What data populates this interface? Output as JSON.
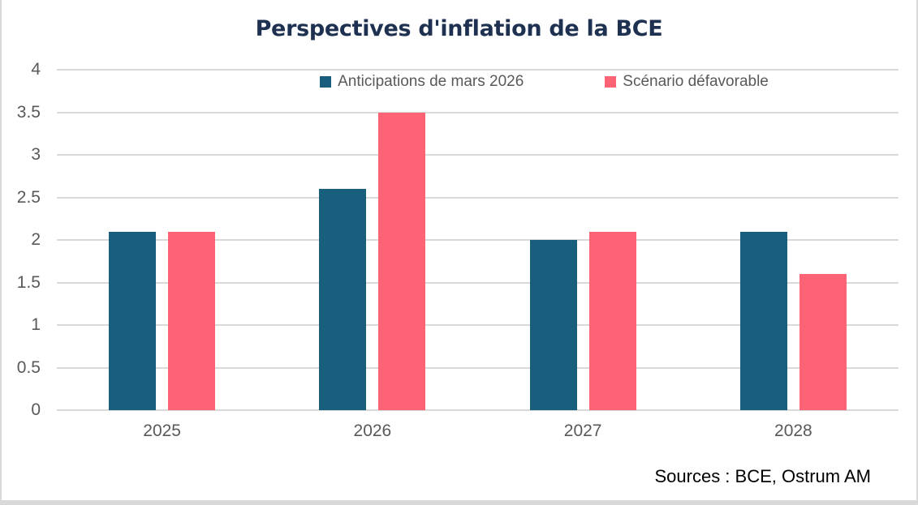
{
  "window": {
    "source_note": "Sources : BCE, Ostrum AM"
  },
  "chart_data": {
    "type": "bar",
    "title": "Perspectives d'inflation de la BCE",
    "categories": [
      "2025",
      "2026",
      "2027",
      "2028"
    ],
    "series": [
      {
        "name": "Anticipations de mars 2026",
        "color": "#195E7D",
        "values": [
          2.1,
          2.6,
          2.0,
          2.1
        ]
      },
      {
        "name": "Scénario défavorable",
        "color": "#FC6476",
        "values": [
          2.1,
          3.5,
          2.1,
          1.6
        ]
      }
    ],
    "xlabel": "",
    "ylabel": "",
    "ylim": [
      0,
      4
    ],
    "ytick_step": 0.5,
    "yticks": [
      "0",
      "0.5",
      "1",
      "1.5",
      "2",
      "2.5",
      "3",
      "3.5",
      "4"
    ],
    "grid": true,
    "legend_position": "top-center",
    "colors": {
      "title_text": "#1E3150",
      "axis_text": "#595959",
      "gridline": "#D9D9D9",
      "background": "#FFFFFF",
      "window_border": "#D9D9D9",
      "source_text": "#000000"
    }
  }
}
